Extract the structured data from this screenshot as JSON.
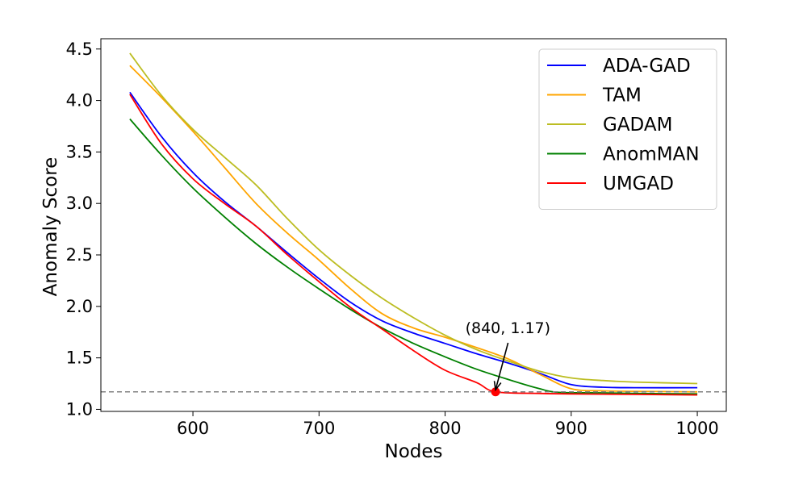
{
  "chart_data": {
    "type": "line",
    "title": "",
    "xlabel": "Nodes",
    "ylabel": "Anomaly Score",
    "xlim": [
      527,
      1023
    ],
    "ylim": [
      0.98,
      4.6
    ],
    "xticks": [
      600,
      700,
      800,
      900,
      1000
    ],
    "yticks": [
      1.0,
      1.5,
      2.0,
      2.5,
      3.0,
      3.5,
      4.0,
      4.5
    ],
    "xtick_labels": [
      "600",
      "700",
      "800",
      "900",
      "1000"
    ],
    "ytick_labels": [
      "1.0",
      "1.5",
      "2.0",
      "2.5",
      "3.0",
      "3.5",
      "4.0",
      "4.5"
    ],
    "grid": false,
    "legend_position": "top-right",
    "series": [
      {
        "name": "ADA-GAD",
        "color": "#0000ff",
        "x": [
          550,
          575,
          600,
          625,
          650,
          675,
          700,
          725,
          750,
          775,
          800,
          825,
          850,
          875,
          900,
          925,
          950,
          1000
        ],
        "y": [
          4.08,
          3.65,
          3.3,
          3.02,
          2.78,
          2.52,
          2.27,
          2.04,
          1.86,
          1.74,
          1.64,
          1.54,
          1.45,
          1.35,
          1.24,
          1.215,
          1.21,
          1.21
        ]
      },
      {
        "name": "TAM",
        "color": "#ffa500",
        "x": [
          550,
          575,
          600,
          625,
          650,
          675,
          700,
          725,
          750,
          775,
          800,
          825,
          850,
          875,
          900,
          925,
          950,
          1000
        ],
        "y": [
          4.34,
          4.03,
          3.7,
          3.35,
          3.0,
          2.71,
          2.45,
          2.17,
          1.93,
          1.79,
          1.7,
          1.6,
          1.49,
          1.34,
          1.2,
          1.18,
          1.175,
          1.17
        ]
      },
      {
        "name": "GADAM",
        "color": "#bcbd22",
        "x": [
          550,
          575,
          600,
          625,
          650,
          675,
          700,
          725,
          750,
          775,
          800,
          825,
          850,
          875,
          900,
          925,
          950,
          1000
        ],
        "y": [
          4.46,
          4.05,
          3.72,
          3.45,
          3.18,
          2.85,
          2.55,
          2.3,
          2.08,
          1.89,
          1.72,
          1.58,
          1.47,
          1.37,
          1.305,
          1.28,
          1.265,
          1.25
        ]
      },
      {
        "name": "AnomMAN",
        "color": "#008000",
        "x": [
          550,
          575,
          600,
          625,
          650,
          675,
          700,
          725,
          750,
          775,
          800,
          825,
          850,
          875,
          890,
          925,
          950,
          1000
        ],
        "y": [
          3.82,
          3.47,
          3.15,
          2.87,
          2.61,
          2.38,
          2.17,
          1.97,
          1.79,
          1.64,
          1.51,
          1.39,
          1.29,
          1.2,
          1.165,
          1.16,
          1.155,
          1.15
        ]
      },
      {
        "name": "UMGAD",
        "color": "#ff0000",
        "x": [
          550,
          575,
          600,
          625,
          650,
          675,
          700,
          725,
          750,
          775,
          800,
          825,
          840,
          875,
          900,
          925,
          950,
          1000
        ],
        "y": [
          4.06,
          3.58,
          3.24,
          3.0,
          2.78,
          2.5,
          2.24,
          1.99,
          1.78,
          1.57,
          1.38,
          1.26,
          1.17,
          1.155,
          1.15,
          1.148,
          1.145,
          1.14
        ]
      }
    ],
    "reference_line": {
      "y": 1.17,
      "style": "dashed",
      "color": "#808080"
    },
    "highlight_point": {
      "x": 840,
      "y": 1.17,
      "color": "#ff0000"
    },
    "annotation": {
      "text": "(840, 1.17)",
      "text_x": 816,
      "text_y": 1.74,
      "arrow_to_x": 840,
      "arrow_to_y": 1.19
    }
  }
}
